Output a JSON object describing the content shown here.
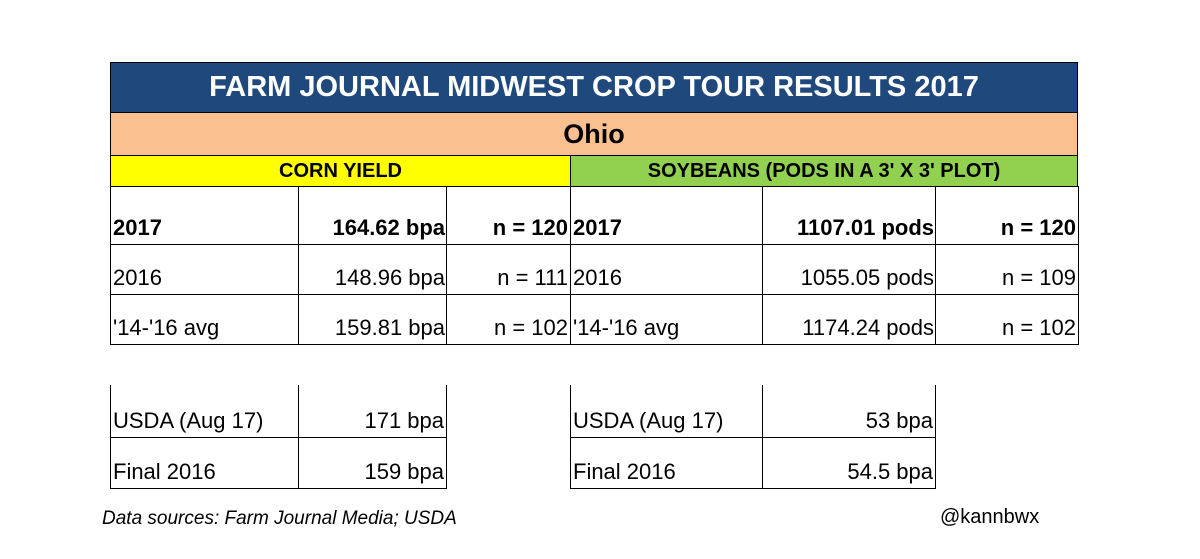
{
  "title": "FARM JOURNAL MIDWEST CROP TOUR RESULTS 2017",
  "state": "Ohio",
  "corn": {
    "header": "CORN YIELD",
    "rows": [
      [
        "2017",
        "164.62 bpa",
        "n = 120"
      ],
      [
        "2016",
        "148.96 bpa",
        "n = 111"
      ],
      [
        " '14-'16 avg",
        "159.81 bpa",
        "n = 102"
      ]
    ]
  },
  "soy": {
    "header": "SOYBEANS (PODS IN A 3' X 3' PLOT)",
    "rows": [
      [
        "2017",
        "1107.01 pods",
        "n = 120"
      ],
      [
        "2016",
        "1055.05 pods",
        "n = 109"
      ],
      [
        " '14-'16 avg",
        "1174.24 pods",
        "n = 102"
      ]
    ]
  },
  "usda_corn": {
    "rows": [
      [
        "USDA (Aug 17)",
        "171 bpa"
      ],
      [
        "Final 2016",
        "159 bpa"
      ]
    ]
  },
  "usda_soy": {
    "rows": [
      [
        "USDA (Aug 17)",
        "53 bpa"
      ],
      [
        " Final 2016",
        "54.5 bpa"
      ]
    ]
  },
  "source": "Data sources: Farm Journal Media; USDA",
  "credit": "@kannbwx"
}
